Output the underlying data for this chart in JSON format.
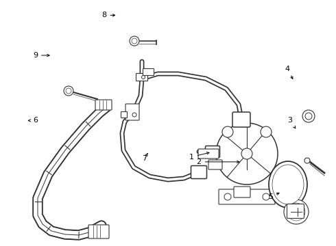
{
  "bg_color": "#ffffff",
  "line_color": "#333333",
  "lw_thin": 0.8,
  "lw_pipe": 1.5,
  "lw_hose": 2.5,
  "label_positions": {
    "1": [
      0.595,
      0.628,
      0.638,
      0.607
    ],
    "2": [
      0.61,
      0.642,
      0.72,
      0.642
    ],
    "3": [
      0.872,
      0.498,
      0.878,
      0.52
    ],
    "4": [
      0.868,
      0.288,
      0.878,
      0.32
    ],
    "5": [
      0.822,
      0.79,
      0.84,
      0.768
    ],
    "6": [
      0.107,
      0.498,
      0.082,
      0.495
    ],
    "7": [
      0.438,
      0.64,
      0.438,
      0.617
    ],
    "8": [
      0.318,
      0.065,
      0.358,
      0.065
    ],
    "9": [
      0.108,
      0.228,
      0.155,
      0.228
    ]
  }
}
